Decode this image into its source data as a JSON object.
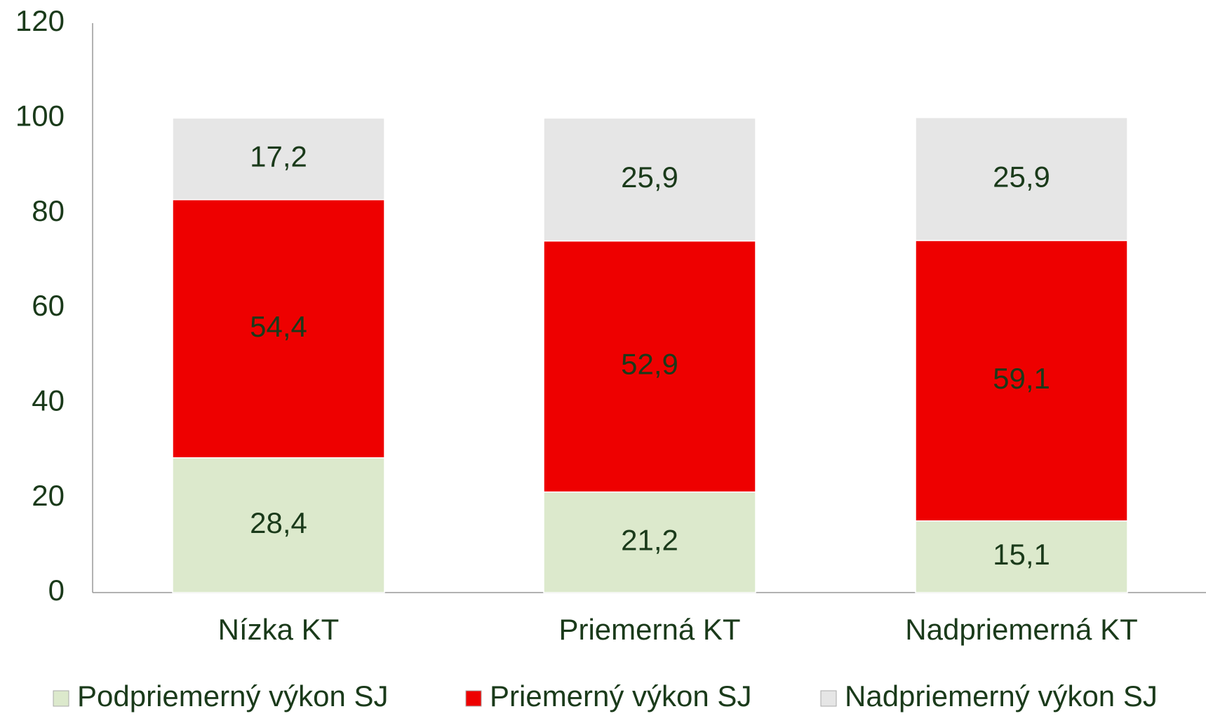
{
  "chart_data": {
    "type": "stacked_bar",
    "categories": [
      "Nízka KT",
      "Priemerná KT",
      "Nadpriemerná KT"
    ],
    "series": [
      {
        "name": "Podpriemerný výkon SJ",
        "color": "#dce9cc",
        "values": [
          28.4,
          21.2,
          15.1
        ],
        "value_labels": [
          "28,4",
          "21,2",
          "15,1"
        ]
      },
      {
        "name": "Priemerný výkon SJ",
        "color": "#ee0000",
        "values": [
          54.4,
          52.9,
          59.1
        ],
        "value_labels": [
          "54,4",
          "52,9",
          "59,1"
        ]
      },
      {
        "name": "Nadpriemerný výkon SJ",
        "color": "#e6e6e6",
        "values": [
          17.2,
          25.9,
          25.9
        ],
        "value_labels": [
          "17,2",
          "25,9",
          "25,9"
        ]
      }
    ],
    "ylim": [
      0,
      120
    ],
    "yticks": [
      0,
      20,
      40,
      60,
      80,
      100,
      120
    ],
    "grid": false,
    "legend": "bottom"
  }
}
